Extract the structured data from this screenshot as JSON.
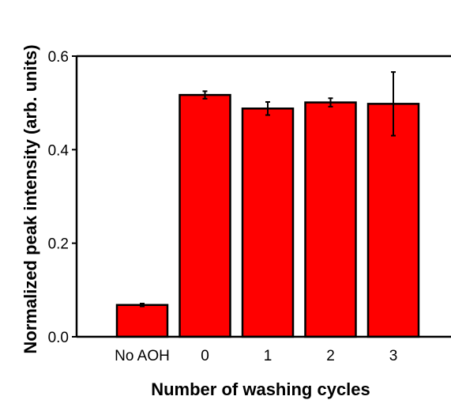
{
  "chart_data": {
    "type": "bar",
    "title": "",
    "xlabel": "Number of washing cycles",
    "ylabel": "Normalized peak intensity (arb. units)",
    "categories": [
      "No AOH",
      "0",
      "1",
      "2",
      "3"
    ],
    "values": [
      0.068,
      0.517,
      0.488,
      0.501,
      0.498
    ],
    "errors": [
      0.003,
      0.008,
      0.014,
      0.009,
      0.068
    ],
    "ylim": [
      0,
      0.6
    ],
    "yticks": [
      "0.0",
      "0.2",
      "0.4",
      "0.6"
    ],
    "bar_color": "#ff0000",
    "grid": false
  }
}
